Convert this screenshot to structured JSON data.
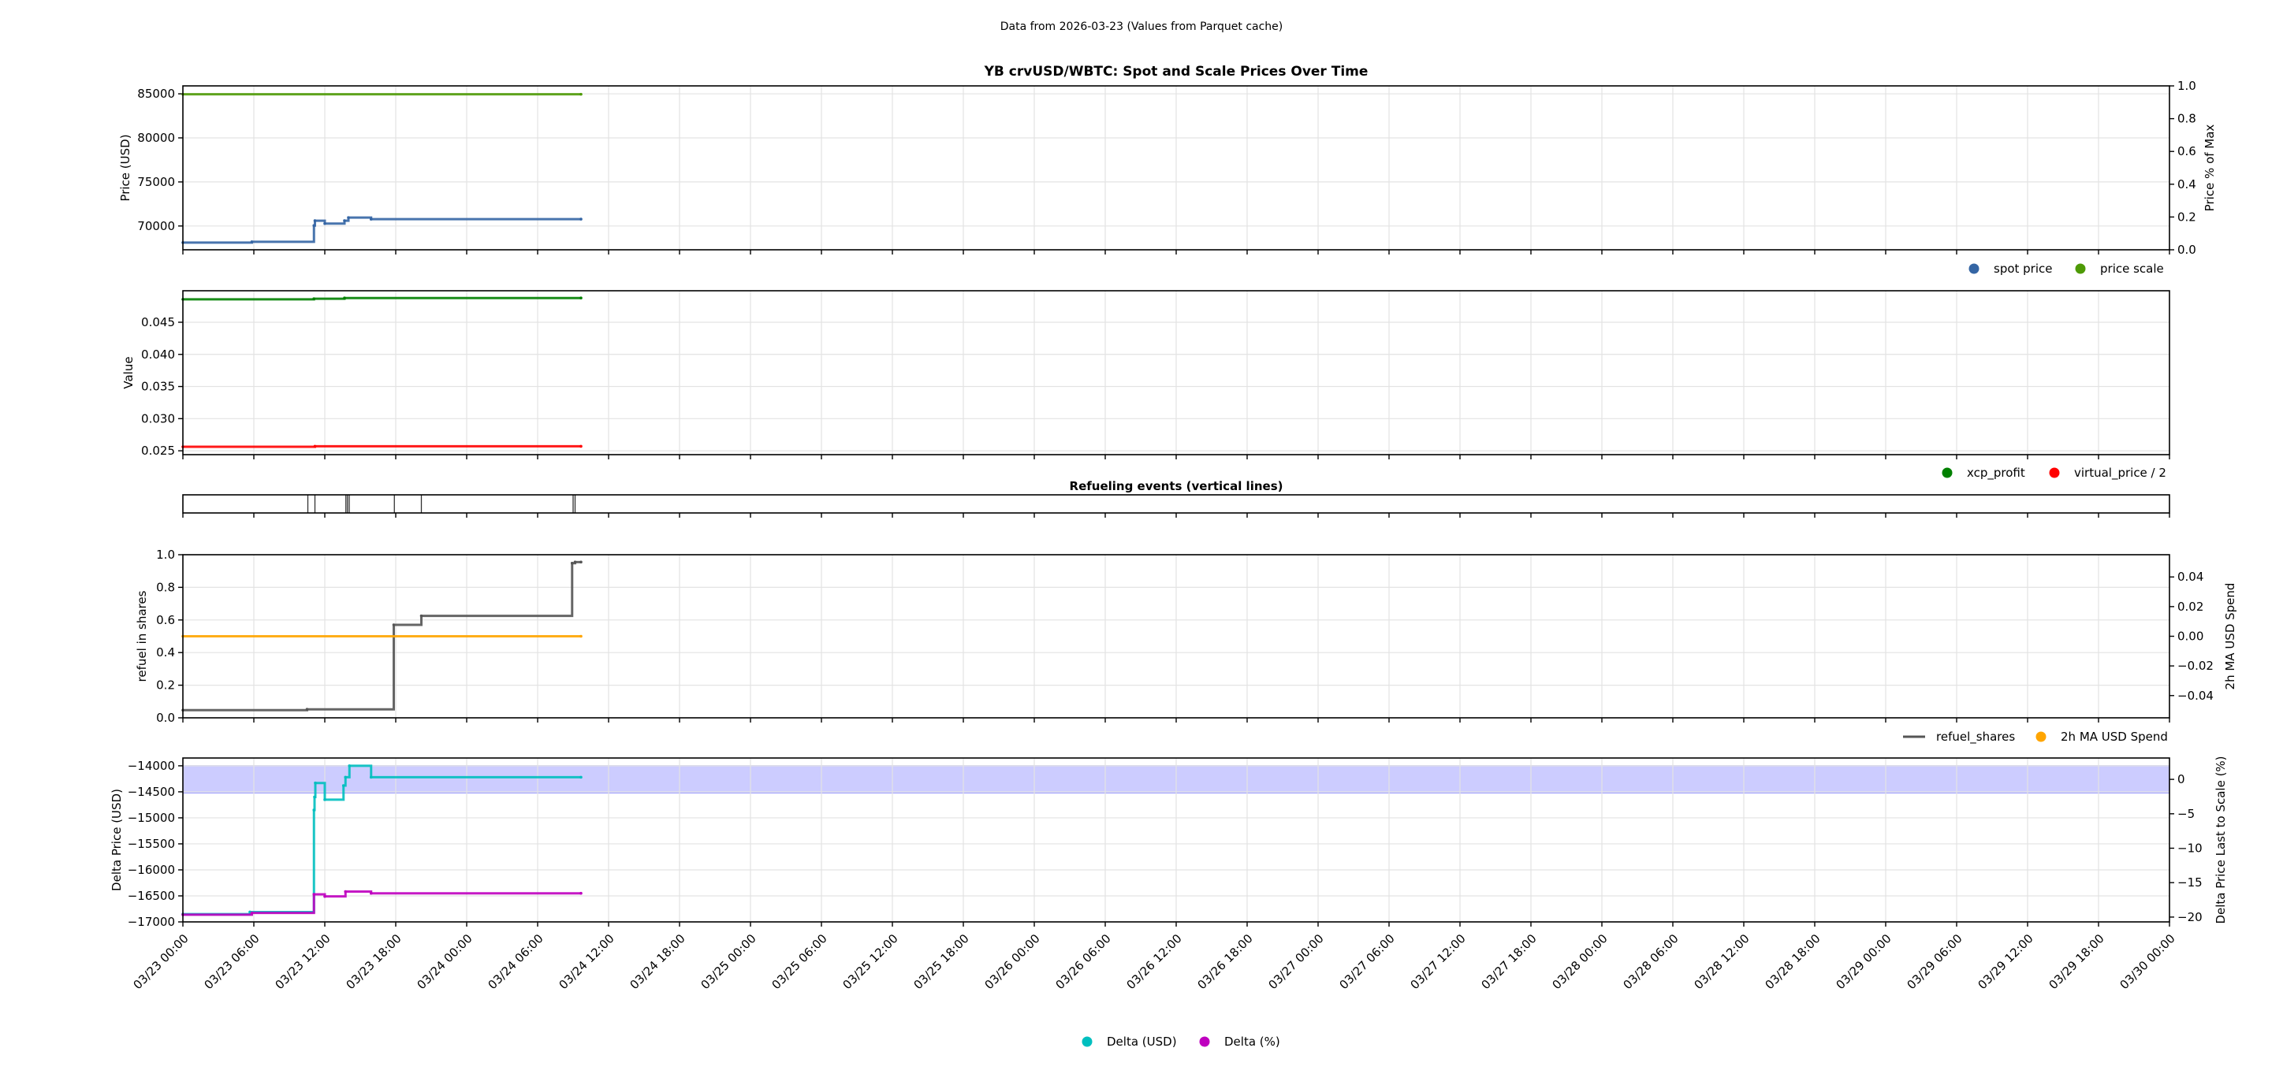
{
  "suptitle": "Data from 2026-03-23 (Values from Parquet cache)",
  "x_axis": {
    "range": [
      "03/23 00:00",
      "03/30 00:00"
    ],
    "tick_labels": [
      "03/23 00:00",
      "03/23 06:00",
      "03/23 12:00",
      "03/23 18:00",
      "03/24 00:00",
      "03/24 06:00",
      "03/24 12:00",
      "03/24 18:00",
      "03/25 00:00",
      "03/25 06:00",
      "03/25 12:00",
      "03/25 18:00",
      "03/26 00:00",
      "03/26 06:00",
      "03/26 12:00",
      "03/26 18:00",
      "03/27 00:00",
      "03/27 06:00",
      "03/27 12:00",
      "03/27 18:00",
      "03/28 00:00",
      "03/28 06:00",
      "03/28 12:00",
      "03/28 18:00",
      "03/29 00:00",
      "03/29 06:00",
      "03/29 12:00",
      "03/29 18:00",
      "03/30 00:00"
    ]
  },
  "chart_data": [
    {
      "type": "line",
      "title": "YB crvUSD/WBTC: Spot and Scale Prices Over Time",
      "ylabel": "Price (USD)",
      "ylim": [
        67300,
        85900
      ],
      "yticks": [
        70000,
        75000,
        80000,
        85000
      ],
      "ytick_labels": [
        "70000",
        "75000",
        "80000",
        "85000"
      ],
      "grid": true,
      "legend": "below-right",
      "right_axis": {
        "ylabel": "Price % of Max",
        "ylim": [
          0,
          1
        ],
        "yticks": [
          0,
          0.2,
          0.4,
          0.6,
          0.8,
          1.0
        ],
        "ytick_labels": [
          "0.0",
          "0.2",
          "0.4",
          "0.6",
          "0.8",
          "1.0"
        ],
        "color": "#000000"
      },
      "series": [
        {
          "name": "spot price",
          "color": "#3465a4",
          "axis": "left",
          "points": [
            [
              "03/23 00:00",
              68120
            ],
            [
              "03/23 05:50",
              68200
            ],
            [
              "03/23 11:05",
              70050
            ],
            [
              "03/23 11:10",
              70600
            ],
            [
              "03/23 12:00",
              70270
            ],
            [
              "03/23 13:40",
              70600
            ],
            [
              "03/23 14:00",
              70950
            ],
            [
              "03/23 15:55",
              70780
            ],
            [
              "03/24 09:40",
              70780
            ]
          ]
        },
        {
          "name": "price scale",
          "color": "#4e9a06",
          "axis": "left",
          "points": [
            [
              "03/23 00:00",
              84950
            ],
            [
              "03/24 09:40",
              84950
            ]
          ]
        }
      ]
    },
    {
      "type": "line",
      "title": "",
      "ylabel": "Value",
      "ylim": [
        0.0244,
        0.0499
      ],
      "yticks": [
        0.025,
        0.03,
        0.035,
        0.04,
        0.045
      ],
      "ytick_labels": [
        "0.025",
        "0.030",
        "0.035",
        "0.040",
        "0.045"
      ],
      "grid": true,
      "legend": "below-right",
      "series": [
        {
          "name": "xcp_profit",
          "color": "#008000",
          "axis": "left",
          "points": [
            [
              "03/23 00:00",
              0.04856
            ],
            [
              "03/23 11:05",
              0.04866
            ],
            [
              "03/23 13:40",
              0.04877
            ],
            [
              "03/24 09:40",
              0.04877
            ]
          ]
        },
        {
          "name": "virtual_price / 2",
          "color": "#ff0000",
          "axis": "left",
          "points": [
            [
              "03/23 00:00",
              0.02562
            ],
            [
              "03/23 11:10",
              0.0257
            ],
            [
              "03/24 09:40",
              0.0257
            ]
          ]
        }
      ]
    },
    {
      "type": "events",
      "title": "Refueling events (vertical lines)",
      "color": "#000000",
      "events": [
        "03/23 10:34",
        "03/23 11:10",
        "03/23 13:47",
        "03/23 13:55",
        "03/23 14:04",
        "03/23 17:53",
        "03/23 20:10",
        "03/24 09:00",
        "03/24 09:10"
      ]
    },
    {
      "type": "line",
      "title": "",
      "ylabel": "refuel in shares",
      "ylim": [
        0,
        1
      ],
      "yticks": [
        0,
        0.2,
        0.4,
        0.6,
        0.8,
        1.0
      ],
      "ytick_labels": [
        "0.0",
        "0.2",
        "0.4",
        "0.6",
        "0.8",
        "1.0"
      ],
      "grid": true,
      "legend": "below-right",
      "right_axis": {
        "ylabel": "2h MA USD Spend",
        "ylim": [
          -0.055,
          0.055
        ],
        "yticks": [
          -0.04,
          -0.02,
          0,
          0.02,
          0.04
        ],
        "ytick_labels": [
          "−0.04",
          "−0.02",
          "0.00",
          "0.02",
          "0.04"
        ],
        "color": "#ffa500"
      },
      "series": [
        {
          "name": "refuel_shares",
          "color": "#555555",
          "axis": "left",
          "legend_marker": "line",
          "points": [
            [
              "03/23 00:00",
              0.047
            ],
            [
              "03/23 10:30",
              0.052
            ],
            [
              "03/23 17:50",
              0.57
            ],
            [
              "03/23 20:10",
              0.625
            ],
            [
              "03/24 08:55",
              0.948
            ],
            [
              "03/24 09:10",
              0.955
            ],
            [
              "03/24 09:40",
              0.955
            ]
          ]
        },
        {
          "name": "2h MA USD Spend",
          "color": "#ffa500",
          "axis": "right",
          "points": [
            [
              "03/23 00:00",
              0
            ],
            [
              "03/24 09:40",
              0
            ]
          ]
        }
      ]
    },
    {
      "type": "line",
      "title": "",
      "ylabel": "Delta Price (USD)",
      "ylabel_color": "#00bfbf",
      "ylim": [
        -17000,
        -13850
      ],
      "yticks": [
        -17000,
        -16500,
        -16000,
        -15500,
        -15000,
        -14500,
        -14000
      ],
      "ytick_labels": [
        "−17000",
        "−16500",
        "−16000",
        "−15500",
        "−15000",
        "−14500",
        "−14000"
      ],
      "grid": true,
      "legend": "below-center",
      "right_axis": {
        "ylabel": "Delta Price Last to Scale (%)",
        "ylim": [
          -20.7,
          3.1
        ],
        "yticks": [
          -20,
          -15,
          -10,
          -5,
          0
        ],
        "ytick_labels": [
          "−20",
          "−15",
          "−10",
          "−5",
          "0"
        ],
        "color": "#bf00bf"
      },
      "band": {
        "axis": "right",
        "range": [
          -2,
          2
        ],
        "color": "#0000ff",
        "opacity": 0.2
      },
      "series": [
        {
          "name": "Delta (USD)",
          "color": "#00bfbf",
          "axis": "left",
          "points": [
            [
              "03/23 00:00",
              -16850
            ],
            [
              "03/23 05:40",
              -16810
            ],
            [
              "03/23 11:05",
              -14850
            ],
            [
              "03/23 11:08",
              -14600
            ],
            [
              "03/23 11:12",
              -14330
            ],
            [
              "03/23 12:00",
              -14650
            ],
            [
              "03/23 13:35",
              -14380
            ],
            [
              "03/23 13:45",
              -14220
            ],
            [
              "03/23 14:05",
              -14000
            ],
            [
              "03/23 15:55",
              -14220
            ],
            [
              "03/24 09:40",
              -14220
            ]
          ]
        },
        {
          "name": "Delta (%)",
          "color": "#bf00bf",
          "axis": "right",
          "points": [
            [
              "03/23 00:00",
              -19.65
            ],
            [
              "03/23 05:50",
              -19.4
            ],
            [
              "03/23 11:05",
              -16.7
            ],
            [
              "03/23 12:00",
              -17.0
            ],
            [
              "03/23 13:45",
              -16.3
            ],
            [
              "03/23 15:55",
              -16.55
            ],
            [
              "03/24 09:40",
              -16.55
            ]
          ]
        }
      ]
    }
  ]
}
